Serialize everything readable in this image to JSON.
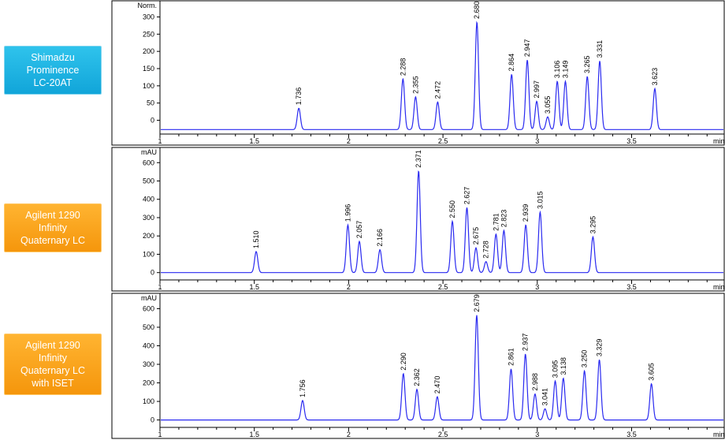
{
  "labels": [
    {
      "text": "Shimadzu\nProminence\nLC-20AT",
      "color": "#1ab0e0"
    },
    {
      "text": "Agilent 1290\nInfinity\nQuaternary LC",
      "color": "#f9a31c"
    },
    {
      "text": "Agilent 1290\nInfinity\nQuaternary LC\nwith ISET",
      "color": "#f9a31c"
    }
  ],
  "colors": {
    "trace": "#2a2af0",
    "axis": "#000000"
  },
  "chart_data": [
    {
      "type": "line",
      "ylabel": "Norm.",
      "xlabel": "min",
      "xlim": [
        1,
        4
      ],
      "ylim": [
        -40,
        340
      ],
      "yticks": [
        0,
        50,
        100,
        150,
        200,
        250,
        300
      ],
      "xticks": [
        1,
        1.5,
        2,
        2.5,
        3,
        3.5
      ],
      "xtick_labels": [
        "1",
        "1.5",
        "2",
        "2.5",
        "3",
        "3.5"
      ],
      "baseline": -27,
      "peaks": [
        {
          "rt": 1.736,
          "label": "1.736",
          "height": 35
        },
        {
          "rt": 2.288,
          "label": "2.288",
          "height": 120
        },
        {
          "rt": 2.355,
          "label": "2.355",
          "height": 68
        },
        {
          "rt": 2.472,
          "label": "2.472",
          "height": 53
        },
        {
          "rt": 2.68,
          "label": "2.680",
          "height": 285
        },
        {
          "rt": 2.864,
          "label": "2.864",
          "height": 133
        },
        {
          "rt": 2.947,
          "label": "2.947",
          "height": 175
        },
        {
          "rt": 2.997,
          "label": "2.997",
          "height": 55
        },
        {
          "rt": 3.055,
          "label": "3.055",
          "height": 10
        },
        {
          "rt": 3.106,
          "label": "3.106",
          "height": 113
        },
        {
          "rt": 3.149,
          "label": "3.149",
          "height": 113
        },
        {
          "rt": 3.265,
          "label": "3.265",
          "height": 127
        },
        {
          "rt": 3.331,
          "label": "3.331",
          "height": 172
        },
        {
          "rt": 3.623,
          "label": "3.623",
          "height": 92
        }
      ]
    },
    {
      "type": "line",
      "ylabel": "mAU",
      "xlabel": "min",
      "xlim": [
        1,
        4
      ],
      "ylim": [
        -40,
        670
      ],
      "yticks": [
        0,
        100,
        200,
        300,
        400,
        500,
        600
      ],
      "xticks": [
        1,
        1.5,
        2,
        2.5,
        3,
        3.5
      ],
      "xtick_labels": [
        "1",
        "1.5",
        "2",
        "2.5",
        "3",
        "3.5"
      ],
      "baseline": 0,
      "peaks": [
        {
          "rt": 1.51,
          "label": "1.510",
          "height": 115
        },
        {
          "rt": 1.996,
          "label": "1.996",
          "height": 260
        },
        {
          "rt": 2.057,
          "label": "2.057",
          "height": 170
        },
        {
          "rt": 2.166,
          "label": "2.166",
          "height": 125
        },
        {
          "rt": 2.371,
          "label": "2.371",
          "height": 555
        },
        {
          "rt": 2.55,
          "label": "2.550",
          "height": 280
        },
        {
          "rt": 2.627,
          "label": "2.627",
          "height": 355
        },
        {
          "rt": 2.675,
          "label": "2.675",
          "height": 135
        },
        {
          "rt": 2.728,
          "label": "2.728",
          "height": 60
        },
        {
          "rt": 2.781,
          "label": "2.781",
          "height": 210
        },
        {
          "rt": 2.823,
          "label": "2.823",
          "height": 230
        },
        {
          "rt": 2.939,
          "label": "2.939",
          "height": 260
        },
        {
          "rt": 3.015,
          "label": "3.015",
          "height": 330
        },
        {
          "rt": 3.295,
          "label": "3.295",
          "height": 195
        }
      ]
    },
    {
      "type": "line",
      "ylabel": "mAU",
      "xlabel": "min",
      "xlim": [
        1,
        4
      ],
      "ylim": [
        -40,
        670
      ],
      "yticks": [
        0,
        100,
        200,
        300,
        400,
        500,
        600
      ],
      "xticks": [
        1,
        1.5,
        2,
        2.5,
        3,
        3.5
      ],
      "xtick_labels": [
        "1",
        "1.5",
        "2",
        "2.5",
        "3",
        "3.5"
      ],
      "baseline": 0,
      "peaks": [
        {
          "rt": 1.756,
          "label": "1.756",
          "height": 105
        },
        {
          "rt": 2.29,
          "label": "2.290",
          "height": 250
        },
        {
          "rt": 2.362,
          "label": "2.362",
          "height": 165
        },
        {
          "rt": 2.47,
          "label": "2.470",
          "height": 125
        },
        {
          "rt": 2.679,
          "label": "2.679",
          "height": 565
        },
        {
          "rt": 2.861,
          "label": "2.861",
          "height": 275
        },
        {
          "rt": 2.937,
          "label": "2.937",
          "height": 355
        },
        {
          "rt": 2.988,
          "label": "2.988",
          "height": 140
        },
        {
          "rt": 3.041,
          "label": "3.041",
          "height": 60
        },
        {
          "rt": 3.095,
          "label": "3.095",
          "height": 210
        },
        {
          "rt": 3.138,
          "label": "3.138",
          "height": 225
        },
        {
          "rt": 3.25,
          "label": "3.250",
          "height": 265
        },
        {
          "rt": 3.329,
          "label": "3.329",
          "height": 325
        },
        {
          "rt": 3.605,
          "label": "3.605",
          "height": 195
        }
      ]
    }
  ]
}
